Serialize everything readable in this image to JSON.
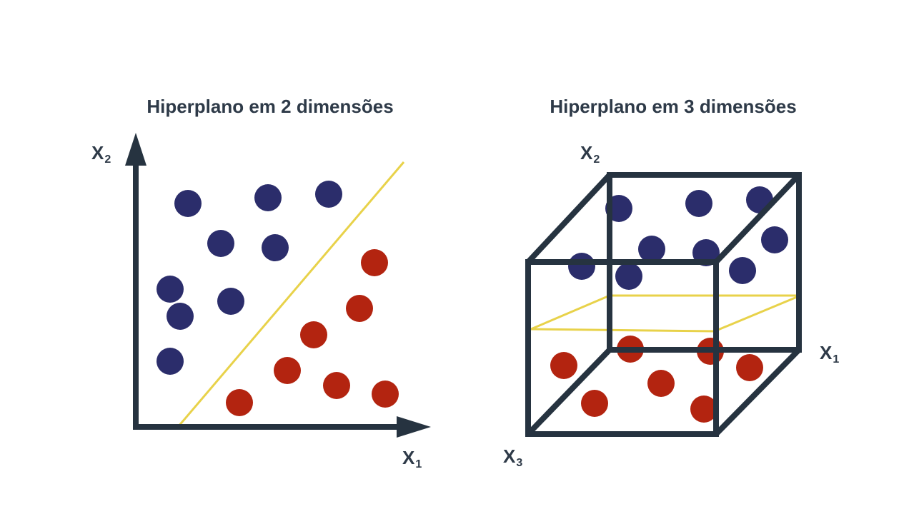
{
  "titles": {
    "left": "Hiperplano em 2 dimensões",
    "right": "Hiperplano em 3 dimensões"
  },
  "labels": {
    "left_x_main": "X",
    "left_x_sub": "1",
    "left_y_main": "X",
    "left_y_sub": "2",
    "right_x1_main": "X",
    "right_x1_sub": "1",
    "right_x2_main": "X",
    "right_x2_sub": "2",
    "right_x3_main": "X",
    "right_x3_sub": "3"
  },
  "colors": {
    "axis": "#263340",
    "blue_points": "#2b2d6b",
    "red_points": "#b32410",
    "hyperplane": "#e8d24a",
    "text": "#2e3a48"
  },
  "icons": {
    "x_axis_arrow": "arrow-right-icon",
    "y_axis_arrow": "arrow-up-icon"
  }
}
